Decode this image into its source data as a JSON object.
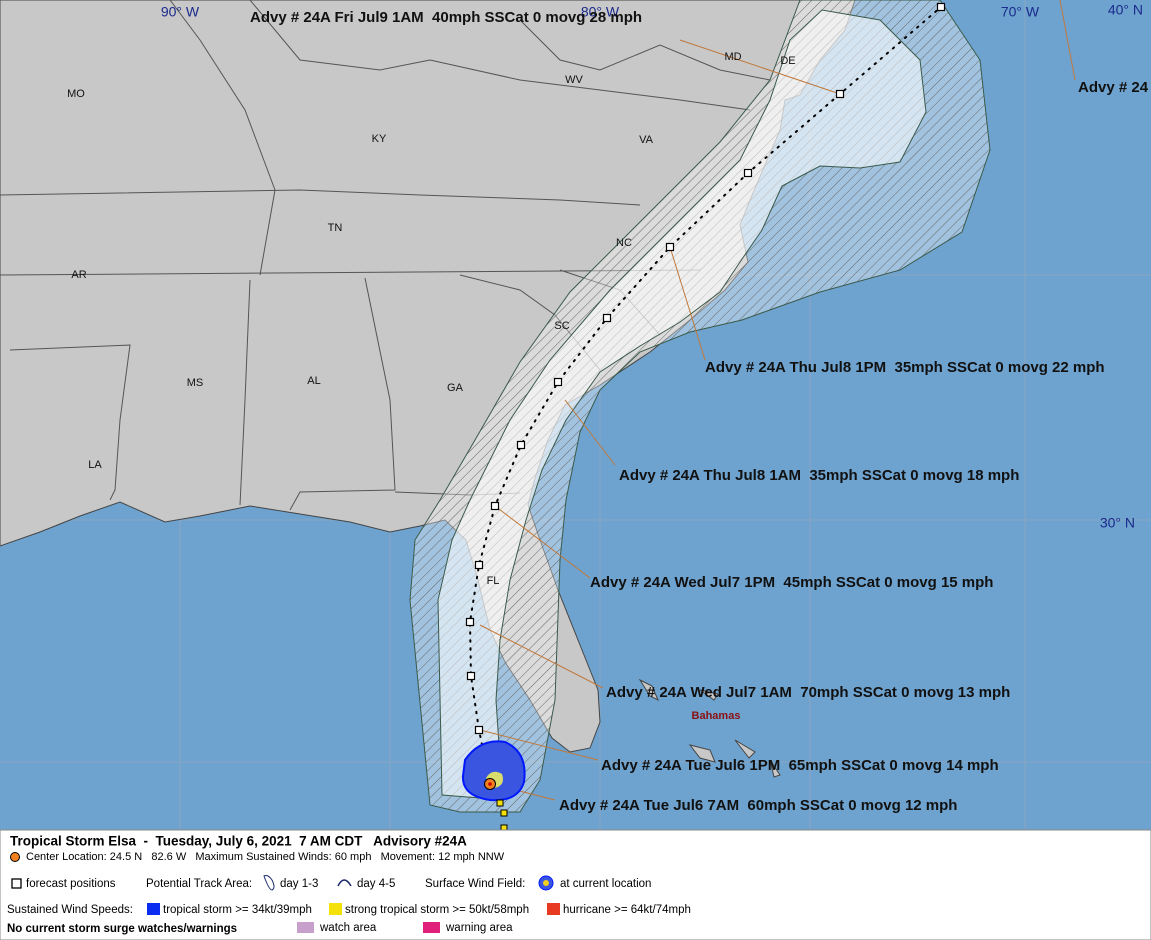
{
  "map": {
    "grid_labels": [
      "90° W",
      "80° W",
      "70° W",
      "40° N",
      "30° N"
    ],
    "state_labels": [
      "MO",
      "KY",
      "WV",
      "VA",
      "MD",
      "DE",
      "TN",
      "NC",
      "AR",
      "SC",
      "MS",
      "AL",
      "GA",
      "LA",
      "FL"
    ],
    "place_labels": [
      "Bahamas"
    ],
    "advisories": [
      "Advy # 24A Fri Jul9 1AM  40mph SSCat 0 movg 28 mph",
      "Advy # 24",
      "Advy # 24A Thu Jul8 1PM  35mph SSCat 0 movg 22 mph",
      "Advy # 24A Thu Jul8 1AM  35mph SSCat 0 movg 18 mph",
      "Advy # 24A Wed Jul7 1PM  45mph SSCat 0 movg 15 mph",
      "Advy # 24A Wed Jul7 1AM  70mph SSCat 0 movg 13 mph",
      "Advy # 24A Tue Jul6 1PM  65mph SSCat 0 movg 14 mph",
      "Advy # 24A Tue Jul6 7AM  60mph SSCat 0 movg 12 mph"
    ]
  },
  "legend": {
    "title": "Tropical Storm Elsa  -  Tuesday, July 6, 2021  7 AM CDT   Advisory #24A",
    "center_info": "Center Location: 24.5 N   82.6 W   Maximum Sustained Winds: 60 mph   Movement: 12 mph NNW",
    "forecast_positions": "forecast positions",
    "potential_track_area": "Potential Track Area:",
    "day_1_3": "day 1-3",
    "day_4_5": "day 4-5",
    "surface_wind_field": "Surface Wind Field:",
    "at_current_location": "at current location",
    "sustained_wind_speeds": "Sustained Wind Speeds:",
    "tropical_storm": "tropical storm >= 34kt/39mph",
    "strong_tropical_storm": "strong tropical storm >= 50kt/58mph",
    "hurricane": "hurricane >= 64kt/74mph",
    "surge_note": "No current storm surge watches/warnings",
    "watch_area": "watch area",
    "warning_area": "warning area"
  }
}
